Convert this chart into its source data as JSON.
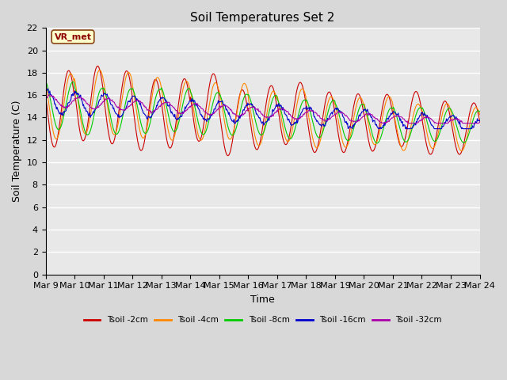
{
  "title": "Soil Temperatures Set 2",
  "xlabel": "Time",
  "ylabel": "Soil Temperature (C)",
  "annotation": "VR_met",
  "ylim": [
    0,
    22
  ],
  "yticks": [
    0,
    2,
    4,
    6,
    8,
    10,
    12,
    14,
    16,
    18,
    20,
    22
  ],
  "xtick_labels": [
    "Mar 9",
    "Mar 10",
    "Mar 11",
    "Mar 12",
    "Mar 13",
    "Mar 14",
    "Mar 15",
    "Mar 16",
    "Mar 17",
    "Mar 18",
    "Mar 19",
    "Mar 20",
    "Mar 21",
    "Mar 22",
    "Mar 23",
    "Mar 24"
  ],
  "colors": {
    "Tsoil -2cm": "#cc0000",
    "Tsoil -4cm": "#ff8800",
    "Tsoil -8cm": "#00cc00",
    "Tsoil -16cm": "#0000cc",
    "Tsoil -32cm": "#aa00aa"
  },
  "bg_color": "#d8d8d8",
  "plot_bg": "#e8e8e8",
  "legend_labels": [
    "Tsoil -2cm",
    "Tsoil -4cm",
    "Tsoil -8cm",
    "Tsoil -16cm",
    "Tsoil -32cm"
  ],
  "figsize": [
    6.4,
    4.8
  ],
  "dpi": 100
}
